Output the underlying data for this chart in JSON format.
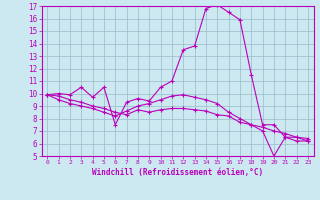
{
  "xlabel": "Windchill (Refroidissement éolien,°C)",
  "ylabel": "",
  "xlim": [
    -0.5,
    23.5
  ],
  "ylim": [
    5,
    17
  ],
  "yticks": [
    5,
    6,
    7,
    8,
    9,
    10,
    11,
    12,
    13,
    14,
    15,
    16,
    17
  ],
  "xticks": [
    0,
    1,
    2,
    3,
    4,
    5,
    6,
    7,
    8,
    9,
    10,
    11,
    12,
    13,
    14,
    15,
    16,
    17,
    18,
    19,
    20,
    21,
    22,
    23
  ],
  "bg_color": "#cce8f0",
  "line_color": "#bb00bb",
  "grid_color": "#99bbcc",
  "line1_x": [
    0,
    1,
    2,
    3,
    4,
    5,
    6,
    7,
    8,
    9,
    10,
    11,
    12,
    13,
    14,
    15,
    16,
    17,
    18,
    19,
    20,
    21,
    22,
    23
  ],
  "line1_y": [
    9.9,
    10.0,
    9.9,
    10.5,
    9.7,
    10.5,
    7.5,
    9.3,
    9.6,
    9.4,
    10.5,
    11.0,
    13.5,
    13.8,
    16.8,
    17.1,
    16.5,
    15.9,
    11.5,
    7.5,
    7.5,
    6.5,
    6.5,
    6.4
  ],
  "line2_x": [
    0,
    1,
    2,
    3,
    4,
    5,
    6,
    7,
    8,
    9,
    10,
    11,
    12,
    13,
    14,
    15,
    16,
    17,
    18,
    19,
    20,
    21,
    22,
    23
  ],
  "line2_y": [
    9.9,
    9.8,
    9.5,
    9.3,
    9.0,
    8.8,
    8.5,
    8.3,
    8.7,
    8.5,
    8.7,
    8.8,
    8.8,
    8.7,
    8.6,
    8.3,
    8.2,
    7.7,
    7.5,
    7.3,
    7.0,
    6.8,
    6.5,
    6.2
  ],
  "line3_x": [
    0,
    1,
    2,
    3,
    4,
    5,
    6,
    7,
    8,
    9,
    10,
    11,
    12,
    13,
    14,
    15,
    16,
    17,
    18,
    19,
    20,
    21,
    22,
    23
  ],
  "line3_y": [
    9.9,
    9.5,
    9.2,
    9.0,
    8.8,
    8.5,
    8.2,
    8.6,
    9.0,
    9.2,
    9.5,
    9.8,
    9.9,
    9.7,
    9.5,
    9.2,
    8.5,
    8.0,
    7.5,
    7.0,
    5.0,
    6.5,
    6.2,
    6.2
  ]
}
